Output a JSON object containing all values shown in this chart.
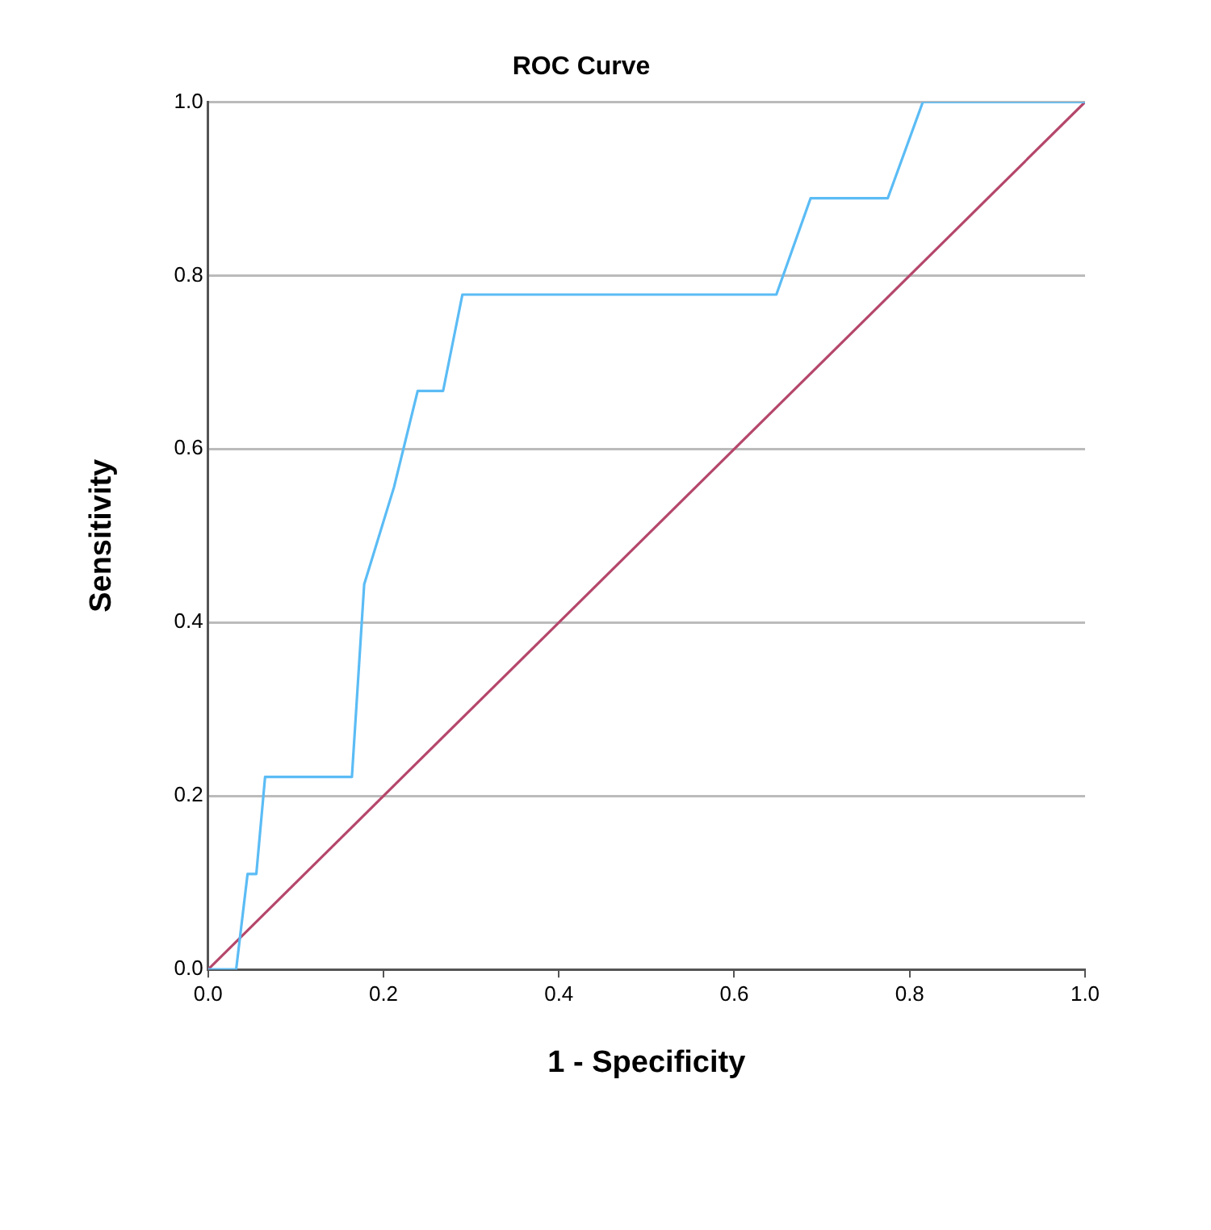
{
  "chart_data": {
    "type": "line",
    "title": "ROC Curve",
    "xlabel": "1 - Specificity",
    "ylabel": "Sensitivity",
    "xlim": [
      0,
      1
    ],
    "ylim": [
      0,
      1
    ],
    "xticks": [
      {
        "value": 0,
        "label": "0.0"
      },
      {
        "value": 0.2,
        "label": "0.2"
      },
      {
        "value": 0.4,
        "label": "0.4"
      },
      {
        "value": 0.6,
        "label": "0.6"
      },
      {
        "value": 0.8,
        "label": "0.8"
      },
      {
        "value": 1,
        "label": "1.0"
      }
    ],
    "yticks": [
      {
        "value": 0,
        "label": "0.0"
      },
      {
        "value": 0.2,
        "label": "0.2"
      },
      {
        "value": 0.4,
        "label": "0.4"
      },
      {
        "value": 0.6,
        "label": "0.6"
      },
      {
        "value": 0.8,
        "label": "0.8"
      },
      {
        "value": 1,
        "label": "1.0"
      }
    ],
    "grid": "y",
    "legend": false,
    "marker": "none",
    "series": [
      {
        "color": "#5bbcf5",
        "x": [
          0,
          0.032,
          0.045,
          0.055,
          0.065,
          0.164,
          0.178,
          0.212,
          0.239,
          0.268,
          0.29,
          0.648,
          0.687,
          0.775,
          0.815,
          1
        ],
        "values": [
          0,
          0,
          0.11,
          0.11,
          0.222,
          0.222,
          0.444,
          0.556,
          0.667,
          0.667,
          0.778,
          0.778,
          0.889,
          0.889,
          1,
          1
        ]
      },
      {
        "color": "#b5476b",
        "x": [
          0,
          1
        ],
        "values": [
          0,
          1
        ]
      }
    ]
  }
}
